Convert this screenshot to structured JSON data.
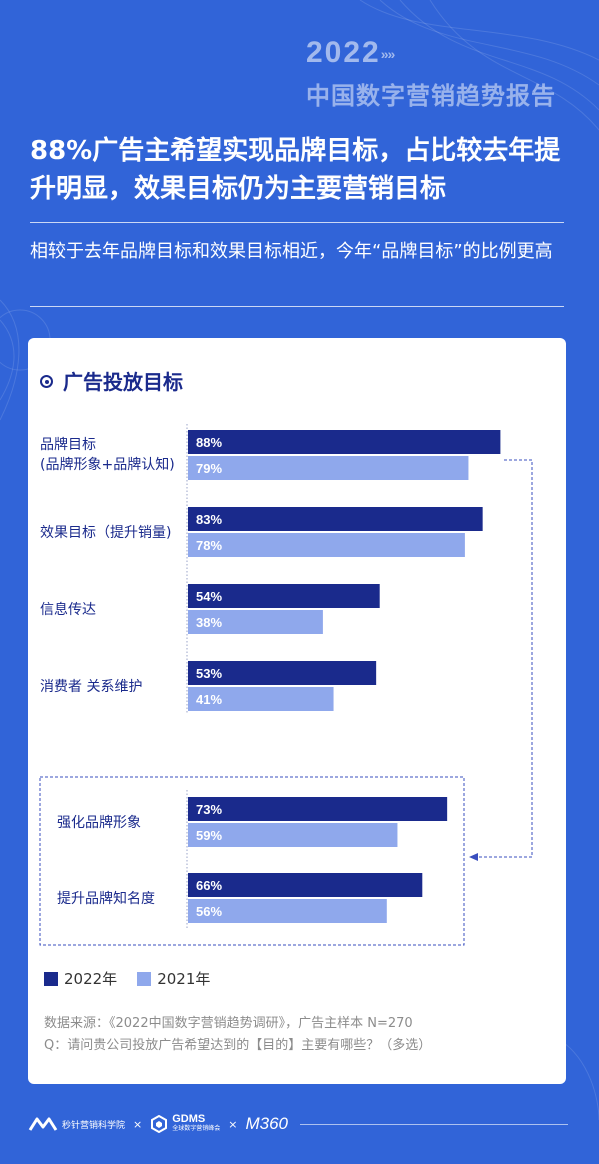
{
  "brand": {
    "year": "2022",
    "year_arrows": "»»",
    "report_title": "中国数字营销趋势报告"
  },
  "headline": "88%广告主希望实现品牌目标，占比较去年提升明显，效果目标仍为主要营销目标",
  "subhead": "相较于去年品牌目标和效果目标相近，今年“品牌目标”的比例更高",
  "card_title": "广告投放目标",
  "colors": {
    "background": "#3164d8",
    "series_2022": "#1a2a8c",
    "series_2021": "#8fa8ec",
    "dashed_connector": "#3a4fbf"
  },
  "chart_data": {
    "type": "bar",
    "orientation": "horizontal",
    "title": "广告投放目标",
    "categories": [
      "品牌目标\n(品牌形象+品牌认知)",
      "效果目标（提升销量)",
      "信息传达",
      "消费者 关系维护",
      "强化品牌形象",
      "提升品牌知名度"
    ],
    "category_lines": [
      [
        "品牌目标",
        "(品牌形象+品牌认知)"
      ],
      [
        "效果目标（提升销量)"
      ],
      [
        "信息传达"
      ],
      [
        "消费者 关系维护"
      ],
      [
        "强化品牌形象"
      ],
      [
        "提升品牌知名度"
      ]
    ],
    "series": [
      {
        "name": "2022年",
        "values": [
          88,
          83,
          54,
          53,
          73,
          66
        ],
        "labels": [
          "88%",
          "83%",
          "54%",
          "53%",
          "73%",
          "66%"
        ]
      },
      {
        "name": "2021年",
        "values": [
          79,
          78,
          38,
          41,
          59,
          56
        ],
        "labels": [
          "79%",
          "78%",
          "38%",
          "41%",
          "59%",
          "56%"
        ]
      }
    ],
    "unit": "%",
    "xlim": [
      0,
      100
    ],
    "grid": false,
    "legend_position": "bottom-left",
    "grouped_sub_categories": [
      "强化品牌形象",
      "提升品牌知名度"
    ]
  },
  "legend": [
    {
      "label": "2022年"
    },
    {
      "label": "2021年"
    }
  ],
  "source": {
    "line1": "数据来源：《2022中国数字营销趋势调研》，广告主样本 N=270",
    "line2": "Q：请问贵公司投放广告希望达到的【目的】主要有哪些？（多选）"
  },
  "footer": {
    "org1": "秒针营销科学院",
    "sep1": "×",
    "org2": "GDMS",
    "org2_sub": "全球数字营销峰会",
    "sep2": "×",
    "org3": "M360"
  }
}
